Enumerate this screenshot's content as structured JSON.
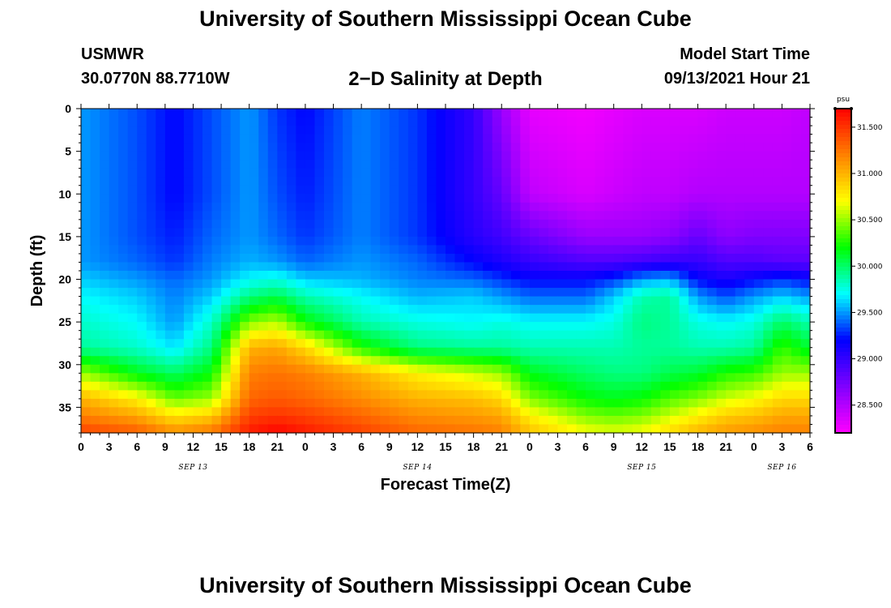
{
  "header": {
    "title": "University of Southern Mississippi Ocean Cube",
    "station_name": "USMWR",
    "station_coords": "30.0770N  88.7710W",
    "plot_title": "2−D Salinity at Depth",
    "model_start_label": "Model Start Time",
    "model_start_value": "09/13/2021 Hour 21"
  },
  "footer": {
    "title": "University of Southern Mississippi Ocean Cube"
  },
  "chart_data": {
    "type": "heatmap",
    "title": "2−D Salinity at Depth",
    "xlabel": "Forecast Time(Z)",
    "ylabel": "Depth (ft)",
    "x_tick_labels": [
      "0",
      "3",
      "6",
      "9",
      "12",
      "15",
      "18",
      "21",
      "0",
      "3",
      "6",
      "9",
      "12",
      "15",
      "18",
      "21",
      "0",
      "3",
      "6",
      "9",
      "12",
      "15",
      "18",
      "21",
      "0",
      "3",
      "6"
    ],
    "x_hours_from_sep13_00z": [
      0,
      3,
      6,
      9,
      12,
      15,
      18,
      21,
      24,
      27,
      30,
      33,
      36,
      39,
      42,
      45,
      48,
      51,
      54,
      57,
      60,
      63,
      66,
      69,
      72,
      75,
      78
    ],
    "date_labels": [
      {
        "text": "SEP 13",
        "hour": 12
      },
      {
        "text": "SEP 14",
        "hour": 36
      },
      {
        "text": "SEP 15",
        "hour": 60
      },
      {
        "text": "SEP 16",
        "hour": 75
      }
    ],
    "xlim_hours": [
      0,
      78
    ],
    "y_ticks": [
      0,
      5,
      10,
      15,
      20,
      25,
      30,
      35
    ],
    "ylim_ft": [
      0,
      38
    ],
    "y_inverted": true,
    "colorbar": {
      "unit": "psu",
      "range": [
        28.2,
        31.7
      ],
      "tick_values": [
        28.5,
        29.0,
        29.5,
        30.0,
        30.5,
        31.0,
        31.5
      ],
      "tick_labels": [
        "28.500",
        "29.000",
        "29.500",
        "30.000",
        "30.500",
        "31.000",
        "31.500"
      ],
      "colormap": [
        "#ff00ff",
        "#8000ff",
        "#0000ff",
        "#00ffff",
        "#00ff00",
        "#ffff00",
        "#ff8000",
        "#ff0000"
      ]
    },
    "depth_levels_ft": [
      0,
      10,
      15,
      18,
      20,
      22,
      25,
      28,
      31,
      34,
      36,
      38
    ],
    "time_hours": [
      0,
      6,
      10,
      14,
      18,
      21,
      24,
      30,
      36,
      42,
      45,
      48,
      54,
      57,
      60,
      63,
      66,
      69,
      72,
      75,
      78
    ],
    "salinity_psu": [
      [
        29.5,
        29.35,
        29.2,
        29.35,
        29.5,
        29.3,
        29.2,
        29.45,
        29.3,
        29.0,
        28.6,
        28.3,
        28.25,
        28.3,
        28.35,
        28.35,
        28.35,
        28.4,
        28.4,
        28.4,
        28.45
      ],
      [
        29.5,
        29.35,
        29.2,
        29.35,
        29.5,
        29.35,
        29.25,
        29.45,
        29.3,
        29.0,
        28.8,
        28.45,
        28.35,
        28.4,
        28.45,
        28.45,
        28.5,
        28.5,
        28.5,
        28.5,
        28.5
      ],
      [
        29.5,
        29.35,
        29.25,
        29.4,
        29.5,
        29.4,
        29.3,
        29.45,
        29.3,
        29.05,
        28.95,
        28.8,
        28.6,
        28.6,
        28.6,
        28.65,
        28.8,
        28.65,
        28.7,
        28.7,
        28.7
      ],
      [
        29.5,
        29.4,
        29.3,
        29.45,
        29.55,
        29.5,
        29.4,
        29.5,
        29.4,
        29.2,
        29.1,
        29.0,
        28.9,
        28.9,
        28.95,
        29.0,
        29.0,
        28.9,
        28.9,
        28.85,
        28.85
      ],
      [
        29.6,
        29.5,
        29.4,
        29.5,
        29.7,
        29.75,
        29.6,
        29.55,
        29.45,
        29.4,
        29.3,
        29.2,
        29.2,
        29.3,
        29.5,
        29.55,
        29.2,
        29.1,
        29.2,
        29.3,
        29.2
      ],
      [
        29.7,
        29.6,
        29.45,
        29.6,
        29.95,
        30.05,
        29.85,
        29.7,
        29.55,
        29.6,
        29.5,
        29.4,
        29.4,
        29.6,
        29.85,
        29.9,
        29.5,
        29.35,
        29.5,
        29.6,
        29.5
      ],
      [
        29.8,
        29.7,
        29.5,
        29.8,
        30.45,
        30.55,
        30.2,
        29.85,
        29.75,
        29.7,
        29.75,
        29.7,
        29.7,
        29.75,
        29.95,
        29.9,
        29.75,
        29.7,
        29.75,
        30.0,
        29.85
      ],
      [
        29.9,
        29.8,
        29.65,
        29.95,
        31.0,
        31.05,
        30.85,
        30.25,
        29.95,
        29.9,
        29.9,
        29.85,
        29.85,
        29.85,
        29.9,
        29.9,
        29.85,
        29.85,
        29.9,
        30.3,
        30.1
      ],
      [
        30.5,
        30.15,
        30.0,
        30.2,
        31.2,
        31.25,
        31.2,
        31.0,
        30.75,
        30.6,
        30.5,
        30.15,
        30.0,
        29.95,
        29.95,
        30.05,
        30.1,
        30.25,
        30.3,
        30.5,
        30.5
      ],
      [
        31.0,
        30.75,
        30.4,
        30.5,
        31.3,
        31.35,
        31.3,
        31.15,
        31.0,
        30.95,
        30.85,
        30.45,
        30.2,
        30.15,
        30.2,
        30.35,
        30.45,
        30.6,
        30.7,
        30.85,
        30.85
      ],
      [
        31.2,
        31.05,
        30.8,
        30.9,
        31.45,
        31.5,
        31.45,
        31.3,
        31.15,
        31.1,
        31.05,
        30.75,
        30.45,
        30.4,
        30.45,
        30.6,
        30.75,
        30.9,
        30.95,
        31.05,
        31.05
      ],
      [
        31.45,
        31.35,
        31.15,
        31.25,
        31.6,
        31.7,
        31.6,
        31.45,
        31.3,
        31.25,
        31.2,
        30.95,
        30.7,
        30.65,
        30.7,
        30.85,
        31.0,
        31.1,
        31.15,
        31.2,
        31.2
      ]
    ]
  }
}
